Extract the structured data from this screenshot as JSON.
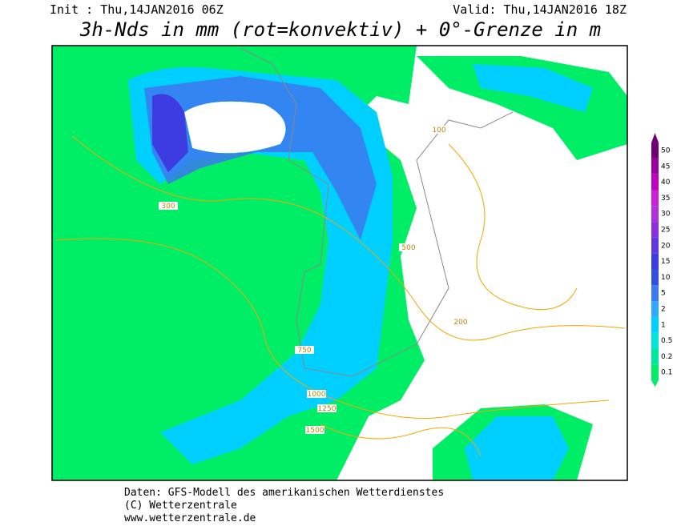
{
  "header": {
    "init": "Init : Thu,14JAN2016 06Z",
    "valid": "Valid: Thu,14JAN2016 18Z",
    "title": "3h-Nds in mm (rot=konvektiv) + 0°-Grenze in m"
  },
  "legend": {
    "ticks": [
      0.1,
      0.2,
      0.5,
      1,
      2,
      5,
      10,
      15,
      20,
      25,
      30,
      35,
      40,
      45,
      50
    ],
    "colors": [
      "#00ee66",
      "#00e8a0",
      "#00e6d8",
      "#00d0ff",
      "#30a8ff",
      "#3c78f0",
      "#2f50e0",
      "#3c3ce0",
      "#6038e0",
      "#8a30e0",
      "#b030e0",
      "#cc20d8",
      "#c000c0",
      "#9a00a0",
      "#700070"
    ]
  },
  "contour_labels": [
    "300",
    "500",
    "750",
    "1000",
    "1250",
    "1500",
    "100",
    "200"
  ],
  "footer": {
    "line1": "Daten: GFS-Modell des amerikanischen Wetterdienstes",
    "line2": "(C) Wetterzentrale",
    "line3": "www.wetterzentrale.de"
  }
}
